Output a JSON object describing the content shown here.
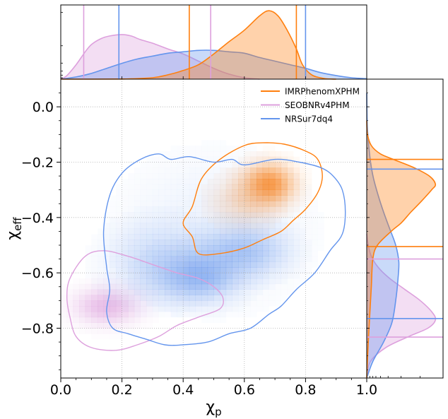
{
  "chart_data": {
    "type": "scatter",
    "subtype": "2d-density-with-marginals",
    "title": "",
    "xlabel": "χ",
    "xlabel_sub": "p",
    "ylabel": "χ",
    "ylabel_sub": "eff",
    "xlim": [
      0.0,
      1.0
    ],
    "ylim": [
      -0.98,
      0.1
    ],
    "xticks": [
      0.0,
      0.2,
      0.4,
      0.6,
      0.8,
      1.0
    ],
    "xtick_labels": [
      "0.0",
      "0.2",
      "0.4",
      "0.6",
      "0.8",
      "1.0"
    ],
    "yticks": [
      0.0,
      -0.2,
      -0.4,
      -0.6,
      -0.8
    ],
    "ytick_labels": [
      "0.0",
      "−0.2",
      "−0.4",
      "−0.6",
      "−0.8"
    ],
    "grid": true,
    "legend_position": "top-right",
    "series": [
      {
        "name": "IMRPhenomXPHM",
        "color": "#ff7f0e",
        "density_peak": [
          0.68,
          -0.28
        ],
        "x_interval": [
          0.42,
          0.77
        ],
        "y_interval": [
          -0.505,
          -0.19
        ],
        "contour": [
          [
            0.43,
            -0.36
          ],
          [
            0.46,
            -0.26
          ],
          [
            0.52,
            -0.19
          ],
          [
            0.6,
            -0.14
          ],
          [
            0.66,
            -0.13
          ],
          [
            0.73,
            -0.135
          ],
          [
            0.8,
            -0.16
          ],
          [
            0.84,
            -0.19
          ],
          [
            0.855,
            -0.25
          ],
          [
            0.84,
            -0.31
          ],
          [
            0.8,
            -0.37
          ],
          [
            0.76,
            -0.41
          ],
          [
            0.72,
            -0.45
          ],
          [
            0.66,
            -0.48
          ],
          [
            0.6,
            -0.51
          ],
          [
            0.52,
            -0.53
          ],
          [
            0.45,
            -0.53
          ],
          [
            0.43,
            -0.47
          ],
          [
            0.4,
            -0.42
          ]
        ],
        "marginal_x": [
          [
            0.0,
            0
          ],
          [
            0.2,
            0.002
          ],
          [
            0.3,
            0.02
          ],
          [
            0.35,
            0.06
          ],
          [
            0.4,
            0.12
          ],
          [
            0.45,
            0.2
          ],
          [
            0.5,
            0.35
          ],
          [
            0.55,
            0.52
          ],
          [
            0.6,
            0.68
          ],
          [
            0.65,
            0.88
          ],
          [
            0.68,
            0.95
          ],
          [
            0.71,
            0.88
          ],
          [
            0.74,
            0.68
          ],
          [
            0.77,
            0.42
          ],
          [
            0.79,
            0.2
          ],
          [
            0.82,
            0.06
          ],
          [
            0.86,
            0.01
          ],
          [
            0.9,
            0
          ]
        ],
        "marginal_y": [
          [
            -0.98,
            0
          ],
          [
            -0.85,
            0.02
          ],
          [
            -0.75,
            0.04
          ],
          [
            -0.65,
            0.06
          ],
          [
            -0.55,
            0.08
          ],
          [
            -0.5,
            0.14
          ],
          [
            -0.45,
            0.32
          ],
          [
            -0.42,
            0.45
          ],
          [
            -0.38,
            0.58
          ],
          [
            -0.34,
            0.72
          ],
          [
            -0.3,
            0.85
          ],
          [
            -0.28,
            0.9
          ],
          [
            -0.25,
            0.82
          ],
          [
            -0.22,
            0.62
          ],
          [
            -0.19,
            0.35
          ],
          [
            -0.17,
            0.18
          ],
          [
            -0.14,
            0.06
          ],
          [
            -0.1,
            0.01
          ],
          [
            -0.05,
            0
          ]
        ]
      },
      {
        "name": "SEOBNRv4PHM",
        "color": "#dda0dd",
        "density_peak": [
          0.15,
          -0.72
        ],
        "x_interval": [
          0.075,
          0.49
        ],
        "y_interval": [
          -0.832,
          -0.55
        ],
        "contour": [
          [
            0.03,
            -0.62
          ],
          [
            0.08,
            -0.54
          ],
          [
            0.14,
            -0.52
          ],
          [
            0.22,
            -0.54
          ],
          [
            0.3,
            -0.57
          ],
          [
            0.38,
            -0.6
          ],
          [
            0.45,
            -0.62
          ],
          [
            0.5,
            -0.65
          ],
          [
            0.53,
            -0.69
          ],
          [
            0.52,
            -0.73
          ],
          [
            0.45,
            -0.76
          ],
          [
            0.38,
            -0.79
          ],
          [
            0.32,
            -0.83
          ],
          [
            0.25,
            -0.86
          ],
          [
            0.18,
            -0.88
          ],
          [
            0.1,
            -0.87
          ],
          [
            0.05,
            -0.83
          ],
          [
            0.03,
            -0.76
          ],
          [
            0.02,
            -0.69
          ]
        ],
        "marginal_x": [
          [
            0.0,
            0
          ],
          [
            0.02,
            0.05
          ],
          [
            0.05,
            0.2
          ],
          [
            0.08,
            0.38
          ],
          [
            0.1,
            0.48
          ],
          [
            0.13,
            0.56
          ],
          [
            0.16,
            0.6
          ],
          [
            0.2,
            0.62
          ],
          [
            0.23,
            0.6
          ],
          [
            0.26,
            0.55
          ],
          [
            0.3,
            0.5
          ],
          [
            0.35,
            0.42
          ],
          [
            0.4,
            0.35
          ],
          [
            0.45,
            0.25
          ],
          [
            0.5,
            0.15
          ],
          [
            0.55,
            0.07
          ],
          [
            0.6,
            0.02
          ],
          [
            0.65,
            0
          ]
        ],
        "marginal_y": [
          [
            -0.98,
            0
          ],
          [
            -0.92,
            0.05
          ],
          [
            -0.87,
            0.25
          ],
          [
            -0.83,
            0.55
          ],
          [
            -0.8,
            0.8
          ],
          [
            -0.77,
            0.9
          ],
          [
            -0.74,
            0.85
          ],
          [
            -0.7,
            0.7
          ],
          [
            -0.66,
            0.5
          ],
          [
            -0.62,
            0.3
          ],
          [
            -0.58,
            0.15
          ],
          [
            -0.54,
            0.06
          ],
          [
            -0.5,
            0.02
          ],
          [
            -0.46,
            0
          ]
        ]
      },
      {
        "name": "NRSur7dq4",
        "color": "#6495ed",
        "density_peak": [
          0.45,
          -0.61
        ],
        "x_interval": [
          0.19,
          0.8
        ],
        "y_interval": [
          -0.765,
          -0.225
        ],
        "contour": [
          [
            0.14,
            -0.45
          ],
          [
            0.16,
            -0.32
          ],
          [
            0.2,
            -0.24
          ],
          [
            0.26,
            -0.19
          ],
          [
            0.32,
            -0.17
          ],
          [
            0.36,
            -0.19
          ],
          [
            0.42,
            -0.18
          ],
          [
            0.5,
            -0.2
          ],
          [
            0.56,
            -0.19
          ],
          [
            0.6,
            -0.21
          ],
          [
            0.7,
            -0.19
          ],
          [
            0.78,
            -0.2
          ],
          [
            0.85,
            -0.22
          ],
          [
            0.89,
            -0.25
          ],
          [
            0.92,
            -0.3
          ],
          [
            0.93,
            -0.38
          ],
          [
            0.92,
            -0.46
          ],
          [
            0.88,
            -0.52
          ],
          [
            0.83,
            -0.6
          ],
          [
            0.77,
            -0.66
          ],
          [
            0.72,
            -0.72
          ],
          [
            0.68,
            -0.75
          ],
          [
            0.62,
            -0.8
          ],
          [
            0.55,
            -0.82
          ],
          [
            0.48,
            -0.85
          ],
          [
            0.4,
            -0.86
          ],
          [
            0.34,
            -0.86
          ],
          [
            0.28,
            -0.84
          ],
          [
            0.22,
            -0.82
          ],
          [
            0.17,
            -0.8
          ],
          [
            0.15,
            -0.74
          ],
          [
            0.16,
            -0.66
          ],
          [
            0.15,
            -0.58
          ]
        ],
        "marginal_x": [
          [
            0.0,
            0
          ],
          [
            0.05,
            0.03
          ],
          [
            0.1,
            0.08
          ],
          [
            0.15,
            0.15
          ],
          [
            0.2,
            0.22
          ],
          [
            0.25,
            0.28
          ],
          [
            0.3,
            0.32
          ],
          [
            0.35,
            0.36
          ],
          [
            0.4,
            0.38
          ],
          [
            0.45,
            0.4
          ],
          [
            0.5,
            0.4
          ],
          [
            0.55,
            0.38
          ],
          [
            0.6,
            0.36
          ],
          [
            0.65,
            0.3
          ],
          [
            0.7,
            0.25
          ],
          [
            0.75,
            0.2
          ],
          [
            0.8,
            0.15
          ],
          [
            0.85,
            0.09
          ],
          [
            0.9,
            0.05
          ],
          [
            0.95,
            0.02
          ],
          [
            1.0,
            0.005
          ]
        ],
        "marginal_y": [
          [
            -0.98,
            0
          ],
          [
            -0.92,
            0.08
          ],
          [
            -0.85,
            0.22
          ],
          [
            -0.78,
            0.33
          ],
          [
            -0.7,
            0.38
          ],
          [
            -0.62,
            0.41
          ],
          [
            -0.56,
            0.42
          ],
          [
            -0.5,
            0.38
          ],
          [
            -0.44,
            0.3
          ],
          [
            -0.38,
            0.22
          ],
          [
            -0.32,
            0.15
          ],
          [
            -0.26,
            0.09
          ],
          [
            -0.2,
            0.05
          ],
          [
            -0.12,
            0.02
          ],
          [
            -0.05,
            0.005
          ],
          [
            0.05,
            0
          ]
        ]
      }
    ]
  }
}
